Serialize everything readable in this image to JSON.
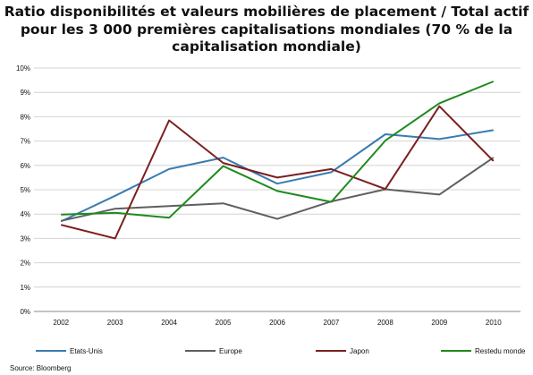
{
  "title": {
    "line1": "Ratio disponibilités et valeurs mobilières de placement / Total actif",
    "line2": "pour les 3 000 premières capitalisations mondiales (70 % de la",
    "line3": "capitalisation mondiale)"
  },
  "source": "Source: Bloomberg",
  "chart_data": {
    "type": "line",
    "x": [
      "2002",
      "2003",
      "2004",
      "2005",
      "2006",
      "2007",
      "2008",
      "2009",
      "2010"
    ],
    "ylim": [
      0,
      10
    ],
    "yticks": [
      "0%",
      "1%",
      "2%",
      "3%",
      "4%",
      "5%",
      "6%",
      "7%",
      "8%",
      "9%",
      "10%"
    ],
    "grid": true,
    "legend_position": "bottom",
    "series": [
      {
        "name": "Etats-Unis",
        "color": "#3a7bb0",
        "values": [
          3.7,
          4.75,
          5.85,
          6.32,
          5.25,
          5.72,
          7.28,
          7.08,
          7.45
        ]
      },
      {
        "name": "Europe",
        "color": "#5f5f5f",
        "values": [
          3.72,
          4.22,
          4.33,
          4.44,
          3.8,
          4.52,
          5.02,
          4.8,
          6.32
        ]
      },
      {
        "name": "Japon",
        "color": "#7b1f1f",
        "values": [
          3.56,
          3.0,
          7.85,
          6.1,
          5.5,
          5.85,
          5.03,
          8.43,
          6.18
        ]
      },
      {
        "name": "Restedu monde",
        "color": "#1e8a1e",
        "values": [
          3.98,
          4.05,
          3.85,
          5.97,
          4.95,
          4.5,
          7.02,
          8.55,
          9.45
        ]
      }
    ]
  }
}
